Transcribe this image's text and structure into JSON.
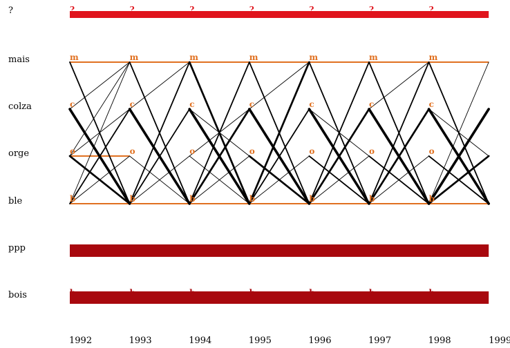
{
  "rows": [
    {
      "id": "q",
      "label": "?",
      "node": "?"
    },
    {
      "id": "mais",
      "label": "mais",
      "node": "m"
    },
    {
      "id": "colza",
      "label": "colza",
      "node": "c"
    },
    {
      "id": "orge",
      "label": "orge",
      "node": "o"
    },
    {
      "id": "ble",
      "label": "ble",
      "node": "b"
    },
    {
      "id": "ppp",
      "label": "ppp",
      "node": ""
    },
    {
      "id": "bois",
      "label": "bois",
      "node": "b"
    }
  ],
  "years": [
    "1992",
    "1993",
    "1994",
    "1995",
    "1996",
    "1997",
    "1998",
    "1999"
  ],
  "colors": {
    "question_band": "#e0141c",
    "orange": "#e07020",
    "dark_band": "#a8080e",
    "crossing": "#000000"
  },
  "bands": [
    {
      "row": "q",
      "from": 0,
      "to": 7,
      "style": "question"
    },
    {
      "row": "ppp",
      "from": 0,
      "to": 7,
      "style": "dark"
    },
    {
      "row": "bois",
      "from": 0,
      "to": 7,
      "style": "dark"
    }
  ],
  "orange_lines": [
    {
      "row": "mais",
      "from": 0,
      "to": 7
    },
    {
      "row": "ble",
      "from": 0,
      "to": 7
    },
    {
      "row": "orge",
      "from": 0,
      "to": 1
    }
  ],
  "transitions": [
    {
      "from_row": "mais",
      "to_row": "ble",
      "year_index": 0,
      "weight": 2
    },
    {
      "from_row": "colza",
      "to_row": "ble",
      "year_index": 0,
      "weight": 4
    },
    {
      "from_row": "colza",
      "to_row": "mais",
      "year_index": 0,
      "weight": 1
    },
    {
      "from_row": "orge",
      "to_row": "ble",
      "year_index": 0,
      "weight": 3
    },
    {
      "from_row": "orge",
      "to_row": "mais",
      "year_index": 0,
      "weight": 1
    },
    {
      "from_row": "orge",
      "to_row": "colza",
      "year_index": 0,
      "weight": 1
    },
    {
      "from_row": "ble",
      "to_row": "colza",
      "year_index": 0,
      "weight": 2
    },
    {
      "from_row": "ble",
      "to_row": "mais",
      "year_index": 0,
      "weight": 1
    },
    {
      "from_row": "ble",
      "to_row": "orge",
      "year_index": 0,
      "weight": 1
    },
    {
      "from_row": "mais",
      "to_row": "ble",
      "year_index": 1,
      "weight": 2
    },
    {
      "from_row": "colza",
      "to_row": "ble",
      "year_index": 1,
      "weight": 4
    },
    {
      "from_row": "colza",
      "to_row": "mais",
      "year_index": 1,
      "weight": 1
    },
    {
      "from_row": "orge",
      "to_row": "ble",
      "year_index": 1,
      "weight": 1
    },
    {
      "from_row": "ble",
      "to_row": "colza",
      "year_index": 1,
      "weight": 2
    },
    {
      "from_row": "ble",
      "to_row": "mais",
      "year_index": 1,
      "weight": 2
    },
    {
      "from_row": "ble",
      "to_row": "orge",
      "year_index": 1,
      "weight": 1
    },
    {
      "from_row": "mais",
      "to_row": "ble",
      "year_index": 2,
      "weight": 3
    },
    {
      "from_row": "colza",
      "to_row": "ble",
      "year_index": 2,
      "weight": 4
    },
    {
      "from_row": "colza",
      "to_row": "orge",
      "year_index": 2,
      "weight": 1
    },
    {
      "from_row": "orge",
      "to_row": "ble",
      "year_index": 2,
      "weight": 1
    },
    {
      "from_row": "orge",
      "to_row": "colza",
      "year_index": 2,
      "weight": 1
    },
    {
      "from_row": "ble",
      "to_row": "colza",
      "year_index": 2,
      "weight": 3
    },
    {
      "from_row": "ble",
      "to_row": "mais",
      "year_index": 2,
      "weight": 2
    },
    {
      "from_row": "ble",
      "to_row": "orge",
      "year_index": 2,
      "weight": 1
    },
    {
      "from_row": "mais",
      "to_row": "ble",
      "year_index": 3,
      "weight": 2
    },
    {
      "from_row": "colza",
      "to_row": "ble",
      "year_index": 3,
      "weight": 4
    },
    {
      "from_row": "colza",
      "to_row": "mais",
      "year_index": 3,
      "weight": 1
    },
    {
      "from_row": "orge",
      "to_row": "ble",
      "year_index": 3,
      "weight": 3
    },
    {
      "from_row": "ble",
      "to_row": "colza",
      "year_index": 3,
      "weight": 2
    },
    {
      "from_row": "ble",
      "to_row": "mais",
      "year_index": 3,
      "weight": 3
    },
    {
      "from_row": "ble",
      "to_row": "orge",
      "year_index": 3,
      "weight": 1
    },
    {
      "from_row": "mais",
      "to_row": "ble",
      "year_index": 4,
      "weight": 2
    },
    {
      "from_row": "colza",
      "to_row": "ble",
      "year_index": 4,
      "weight": 4
    },
    {
      "from_row": "colza",
      "to_row": "orge",
      "year_index": 4,
      "weight": 1
    },
    {
      "from_row": "orge",
      "to_row": "ble",
      "year_index": 4,
      "weight": 2
    },
    {
      "from_row": "ble",
      "to_row": "colza",
      "year_index": 4,
      "weight": 3
    },
    {
      "from_row": "ble",
      "to_row": "mais",
      "year_index": 4,
      "weight": 2
    },
    {
      "from_row": "ble",
      "to_row": "orge",
      "year_index": 4,
      "weight": 1
    },
    {
      "from_row": "mais",
      "to_row": "ble",
      "year_index": 5,
      "weight": 2
    },
    {
      "from_row": "colza",
      "to_row": "ble",
      "year_index": 5,
      "weight": 4
    },
    {
      "from_row": "colza",
      "to_row": "mais",
      "year_index": 5,
      "weight": 1
    },
    {
      "from_row": "orge",
      "to_row": "ble",
      "year_index": 5,
      "weight": 2
    },
    {
      "from_row": "ble",
      "to_row": "colza",
      "year_index": 5,
      "weight": 3
    },
    {
      "from_row": "ble",
      "to_row": "mais",
      "year_index": 5,
      "weight": 2
    },
    {
      "from_row": "ble",
      "to_row": "orge",
      "year_index": 5,
      "weight": 1
    },
    {
      "from_row": "mais",
      "to_row": "ble",
      "year_index": 6,
      "weight": 2
    },
    {
      "from_row": "colza",
      "to_row": "ble",
      "year_index": 6,
      "weight": 4
    },
    {
      "from_row": "colza",
      "to_row": "orge",
      "year_index": 6,
      "weight": 1
    },
    {
      "from_row": "orge",
      "to_row": "ble",
      "year_index": 6,
      "weight": 2
    },
    {
      "from_row": "ble",
      "to_row": "colza",
      "year_index": 6,
      "weight": 4
    },
    {
      "from_row": "ble",
      "to_row": "orge",
      "year_index": 6,
      "weight": 3
    },
    {
      "from_row": "ble",
      "to_row": "mais",
      "year_index": 6,
      "weight": 1
    }
  ]
}
